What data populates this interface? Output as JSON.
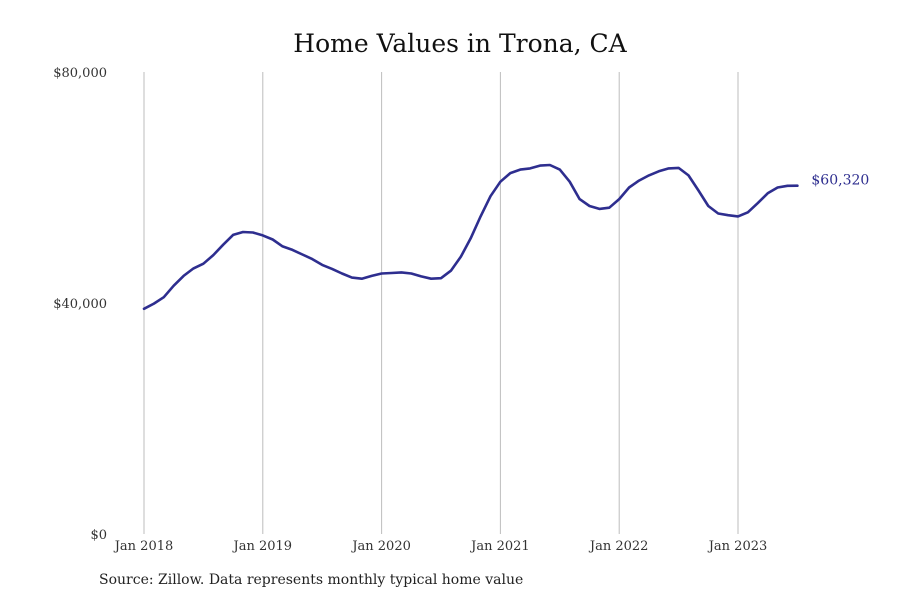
{
  "chart_data": {
    "type": "line",
    "title": "Home Values in Trona, CA",
    "source": "Source: Zillow. Data represents monthly typical home value",
    "ylim": [
      0,
      80000
    ],
    "y_ticks": [
      {
        "value": 0,
        "label": "$0"
      },
      {
        "value": 40000,
        "label": "$40,000"
      },
      {
        "value": 80000,
        "label": "$80,000"
      }
    ],
    "x_ticks": [
      "Jan 2018",
      "Jan 2019",
      "Jan 2020",
      "Jan 2021",
      "Jan 2022",
      "Jan 2023"
    ],
    "x_start": "Jan 2018",
    "end_label": "$60,320",
    "grid": "vertical at year ticks",
    "line_color": "#2e2e8f",
    "series": [
      {
        "values": [
          39000,
          39900,
          41000,
          43000,
          44700,
          46000,
          46800,
          48300,
          50100,
          51800,
          52300,
          52200,
          51700,
          51000,
          49800,
          49200,
          48400,
          47600,
          46600,
          45900,
          45100,
          44400,
          44200,
          44700,
          45100,
          45200,
          45300,
          45100,
          44600,
          44200,
          44300,
          45600,
          48000,
          51200,
          55000,
          58500,
          61000,
          62500,
          63100,
          63300,
          63800,
          63900,
          63100,
          61000,
          58000,
          56800,
          56300,
          56500,
          58000,
          60000,
          61200,
          62100,
          62800,
          63300,
          63400,
          62100,
          59500,
          56800,
          55500,
          55200,
          55000,
          55700,
          57300,
          59000,
          60000,
          60300,
          60320
        ]
      }
    ]
  }
}
